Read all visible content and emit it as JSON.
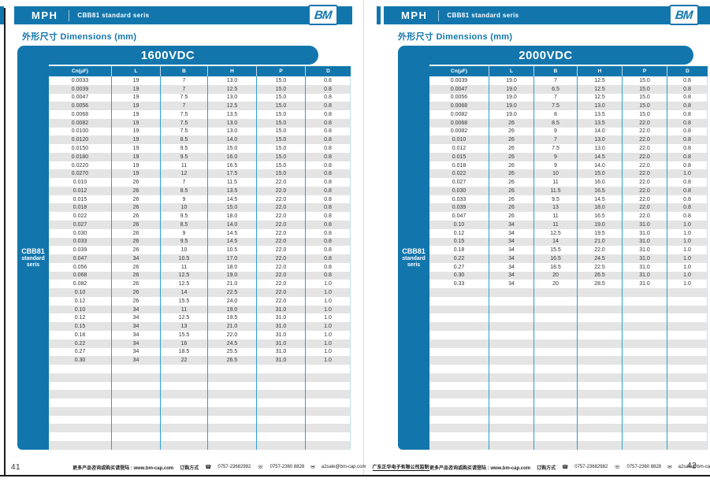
{
  "page_left": {
    "page_number": "41",
    "header": {
      "brand": "MPH",
      "series": "CBB81 standard seris",
      "logo": "BM"
    },
    "section_title": "外形尺寸 Dimensions (mm)",
    "table": {
      "banner": "1600VDC",
      "sidebar": [
        "CBB81",
        "standard",
        "seris"
      ],
      "columns": [
        "Cn(μF)",
        "L",
        "B",
        "H",
        "P",
        "D"
      ],
      "rows": [
        [
          "0.0033",
          "19",
          "7",
          "13.0",
          "15.0",
          "0.8"
        ],
        [
          "0.0039",
          "19",
          "7",
          "12.5",
          "15.0",
          "0.8"
        ],
        [
          "0.0047",
          "19",
          "7.5",
          "13.0",
          "15.0",
          "0.8"
        ],
        [
          "0.0056",
          "19",
          "7",
          "12.5",
          "15.0",
          "0.8"
        ],
        [
          "0.0068",
          "19",
          "7.5",
          "13.5",
          "15.0",
          "0.8"
        ],
        [
          "0.0082",
          "19",
          "7.5",
          "13.0",
          "15.0",
          "0.8"
        ],
        [
          "0.0100",
          "19",
          "7.5",
          "13.0",
          "15.0",
          "0.8"
        ],
        [
          "0.0120",
          "19",
          "8.5",
          "14.0",
          "15.0",
          "0.8"
        ],
        [
          "0.0150",
          "19",
          "9.5",
          "15.0",
          "15.0",
          "0.8"
        ],
        [
          "0.0180",
          "19",
          "9.5",
          "16.0",
          "15.0",
          "0.8"
        ],
        [
          "0.0220",
          "19",
          "11",
          "16.5",
          "15.0",
          "0.8"
        ],
        [
          "0.0270",
          "19",
          "12",
          "17.5",
          "15.0",
          "0.8"
        ],
        [
          "0.010",
          "26",
          "7",
          "11.5",
          "22.0",
          "0.8"
        ],
        [
          "0.012",
          "26",
          "8.5",
          "13.5",
          "22.0",
          "0.8"
        ],
        [
          "0.015",
          "26",
          "9",
          "14.5",
          "22.0",
          "0.8"
        ],
        [
          "0.018",
          "26",
          "10",
          "15.0",
          "22.0",
          "0.8"
        ],
        [
          "0.022",
          "26",
          "9.5",
          "18.0",
          "22.0",
          "0.8"
        ],
        [
          "0.027",
          "26",
          "8.5",
          "14.0",
          "22.0",
          "0.8"
        ],
        [
          "0.030",
          "26",
          "9",
          "14.5",
          "22.0",
          "0.8"
        ],
        [
          "0.033",
          "26",
          "9.5",
          "14.5",
          "22.0",
          "0.8"
        ],
        [
          "0.039",
          "26",
          "10",
          "10.5",
          "22.0",
          "0.8"
        ],
        [
          "0.047",
          "34",
          "10.5",
          "17.0",
          "22.0",
          "0.8"
        ],
        [
          "0.056",
          "26",
          "11",
          "18.0",
          "22.0",
          "0.8"
        ],
        [
          "0.068",
          "26",
          "12.5",
          "19.0",
          "22.0",
          "0.8"
        ],
        [
          "0.082",
          "26",
          "12.5",
          "21.0",
          "22.0",
          "1.0"
        ],
        [
          "0.10",
          "26",
          "14",
          "22.5",
          "22.0",
          "1.0"
        ],
        [
          "0.12",
          "26",
          "15.5",
          "24.0",
          "22.0",
          "1.0"
        ],
        [
          "0.10",
          "34",
          "11",
          "19.0",
          "31.0",
          "1.0"
        ],
        [
          "0.12",
          "34",
          "12.5",
          "19.5",
          "31.0",
          "1.0"
        ],
        [
          "0.15",
          "34",
          "13",
          "21.0",
          "31.0",
          "1.0"
        ],
        [
          "0.18",
          "34",
          "15.5",
          "22.0",
          "31.0",
          "1.0"
        ],
        [
          "0.22",
          "34",
          "16",
          "24.5",
          "31.0",
          "1.0"
        ],
        [
          "0.27",
          "34",
          "18.5",
          "25.5",
          "31.0",
          "1.0"
        ],
        [
          "0.30",
          "34",
          "22",
          "26.5",
          "31.0",
          "1.0"
        ]
      ]
    }
  },
  "page_right": {
    "page_number": "42",
    "header": {
      "brand": "MPH",
      "series": "CBB81  standard  seris",
      "logo": "BM"
    },
    "section_title": "外形尺寸 Dimensions (mm)",
    "table": {
      "banner": "2000VDC",
      "sidebar": [
        "CBB81",
        "standard",
        "seris"
      ],
      "columns": [
        "Cn(μF)",
        "L",
        "B",
        "H",
        "P",
        "D"
      ],
      "rows": [
        [
          "0.0039",
          "19.0",
          "7",
          "12.5",
          "15.0",
          "0.8"
        ],
        [
          "0.0047",
          "19.0",
          "6.5",
          "12.5",
          "15.0",
          "0.8"
        ],
        [
          "0.0056",
          "19.0",
          "7",
          "12.5",
          "15.0",
          "0.8"
        ],
        [
          "0.0068",
          "19.0",
          "7.5",
          "13.0",
          "15.0",
          "0.8"
        ],
        [
          "0.0082",
          "19.0",
          "8",
          "13.5",
          "15.0",
          "0.8"
        ],
        [
          "0.0068",
          "26",
          "8.5",
          "13.5",
          "22.0",
          "0.8"
        ],
        [
          "0.0082",
          "26",
          "9",
          "14.0",
          "22.0",
          "0.8"
        ],
        [
          "0.010",
          "26",
          "7",
          "13.0",
          "22.0",
          "0.8"
        ],
        [
          "0.012",
          "26",
          "7.5",
          "13.0",
          "22.0",
          "0.8"
        ],
        [
          "0.015",
          "26",
          "9",
          "14.5",
          "22.0",
          "0.8"
        ],
        [
          "0.018",
          "26",
          "9",
          "14.0",
          "22.0",
          "0.8"
        ],
        [
          "0.022",
          "26",
          "10",
          "15.0",
          "22.0",
          "1.0"
        ],
        [
          "0.027",
          "26",
          "11",
          "16.0",
          "22.0",
          "0.8"
        ],
        [
          "0.030",
          "26",
          "11.5",
          "16.5",
          "22.0",
          "0.8"
        ],
        [
          "0.033",
          "26",
          "9.5",
          "14.5",
          "22.0",
          "0.8"
        ],
        [
          "0.039",
          "26",
          "13",
          "18.0",
          "22.0",
          "0.8"
        ],
        [
          "0.047",
          "26",
          "11",
          "16.5",
          "22.0",
          "0.8"
        ],
        [
          "0.10",
          "34",
          "11",
          "19.0",
          "31.0",
          "1.0"
        ],
        [
          "0.12",
          "34",
          "12.5",
          "19.5",
          "31.0",
          "1.0"
        ],
        [
          "0.15",
          "34",
          "14",
          "21.0",
          "31.0",
          "1.0"
        ],
        [
          "0.18",
          "34",
          "15.5",
          "22.0",
          "31.0",
          "1.0"
        ],
        [
          "0.22",
          "34",
          "16.5",
          "24.5",
          "31.0",
          "1.0"
        ],
        [
          "0.27",
          "34",
          "18.5",
          "22.5",
          "31.0",
          "1.0"
        ],
        [
          "0.30",
          "34",
          "20",
          "26.5",
          "31.0",
          "1.0"
        ],
        [
          "0.33",
          "34",
          "20",
          "28.5",
          "31.0",
          "1.0"
        ]
      ]
    }
  },
  "footer": {
    "info": "更多产品咨询或购买请登陆 : www.bm-cap.com",
    "order_label": "订购方式",
    "phone_icon": "☎",
    "phone1": "0757-23682982",
    "fax_icon": "☏",
    "phone2": "0757-2360 8828",
    "email_icon": "✉",
    "email": "a2sale@bm-cap.com",
    "company": "广东正华电子有限公司监制"
  },
  "colors": {
    "accent": "#1276ad",
    "separator": "#2d9fd1",
    "stripe": "#e4e4e4"
  }
}
